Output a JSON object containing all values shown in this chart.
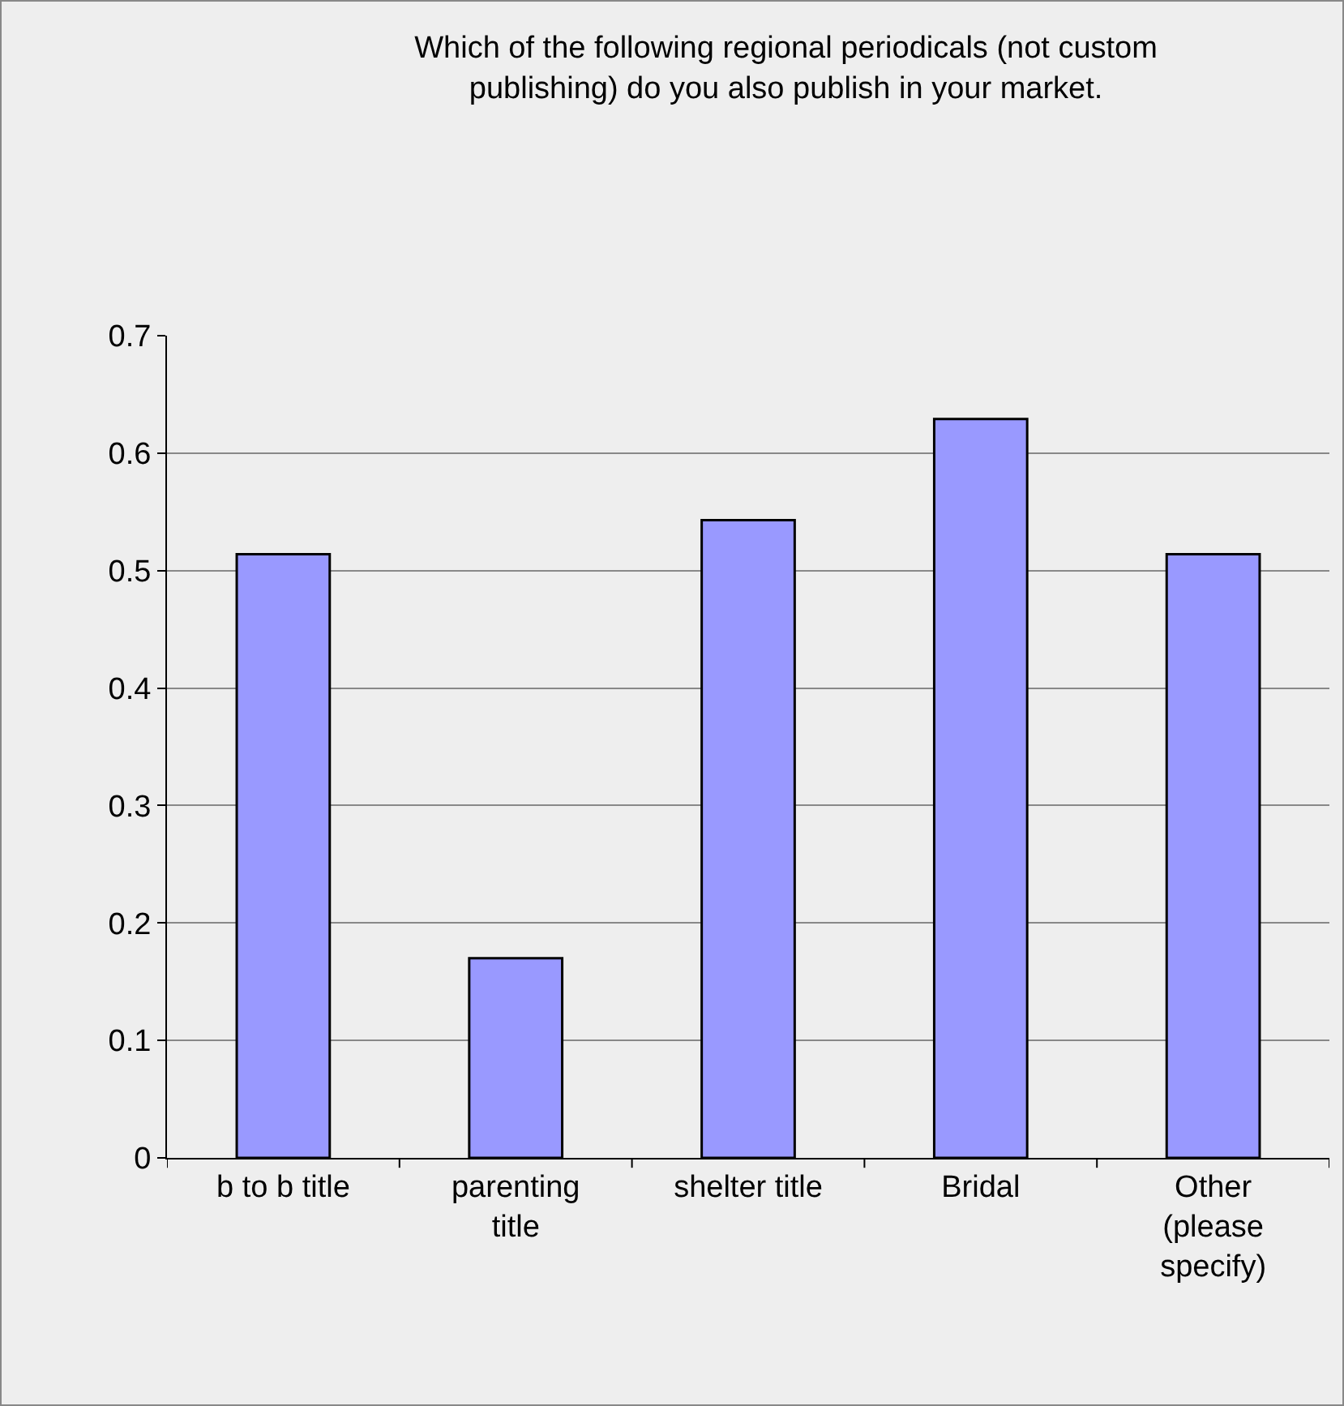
{
  "chart_data": {
    "type": "bar",
    "title": "Which of the following regional periodicals (not custom publishing) do you also publish in your market.",
    "categories": [
      "b to b title",
      "parenting title",
      "shelter title",
      "Bridal",
      "Other (please specify)"
    ],
    "values": [
      0.514,
      0.17,
      0.543,
      0.629,
      0.514
    ],
    "color": "#9999ff",
    "ylim": [
      0,
      0.7
    ],
    "yticks": [
      0,
      0.1,
      0.2,
      0.3,
      0.4,
      0.5,
      0.6,
      0.7
    ],
    "grid": "y",
    "legend": false
  }
}
